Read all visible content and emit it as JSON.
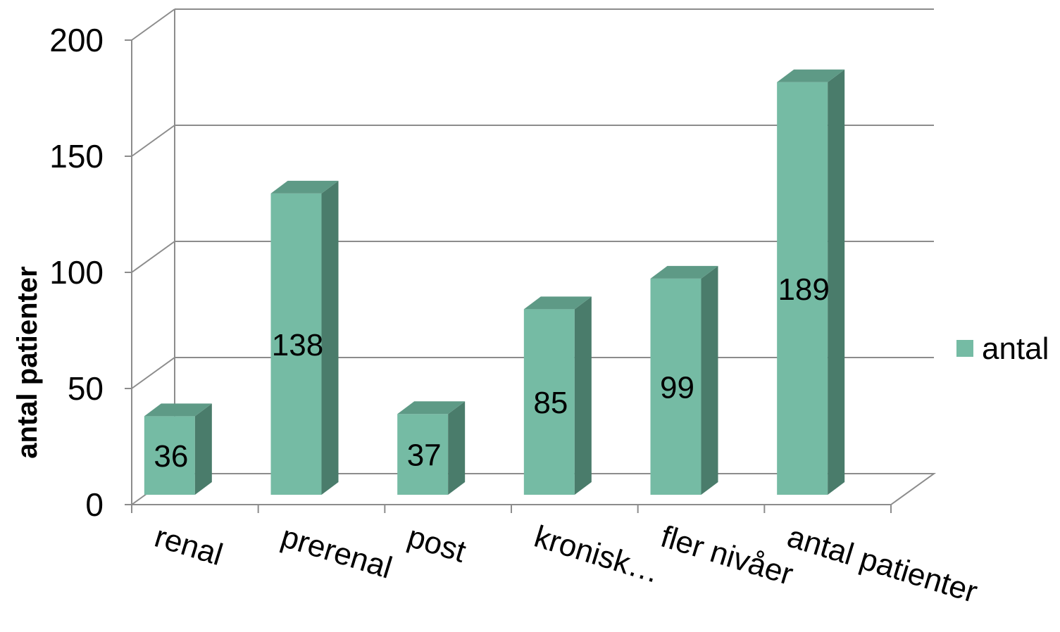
{
  "chart_data": {
    "type": "bar",
    "categories": [
      "renal",
      "prerenal",
      "post",
      "kronisk…",
      "fler nivåer",
      "antal patienter"
    ],
    "series": [
      {
        "name": "antal",
        "values": [
          36,
          138,
          37,
          85,
          99,
          189
        ]
      }
    ],
    "ylabel": "antal patienter",
    "xlabel": "",
    "ylim": [
      0,
      200
    ],
    "yticks": [
      0,
      50,
      100,
      150,
      200
    ],
    "grid": true,
    "legend": "right",
    "style": "3d-column",
    "colors": {
      "front": "#75bba4",
      "side": "#4a7c6b",
      "top": "#5e9a86",
      "grid": "#8c8c8c"
    }
  }
}
